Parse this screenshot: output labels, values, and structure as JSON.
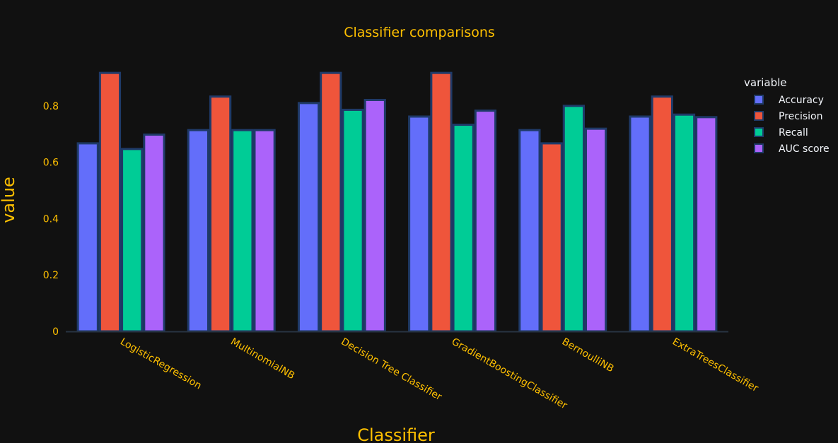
{
  "chart_data": {
    "type": "bar",
    "title": "Classifier comparisons",
    "xlabel": "Classifier",
    "ylabel": "value",
    "categories": [
      "LogisticRegression",
      "MultinomialNB",
      "Decision Tree Classifier",
      "GradientBoostingClassifier",
      "BernoulliNB",
      "ExtraTreesClassifier"
    ],
    "series": [
      {
        "name": "Accuracy",
        "color": "#636efa",
        "values": [
          0.667,
          0.714,
          0.81,
          0.762,
          0.714,
          0.762
        ]
      },
      {
        "name": "Precision",
        "color": "#ef553b",
        "values": [
          0.917,
          0.833,
          0.917,
          0.917,
          0.667,
          0.833
        ]
      },
      {
        "name": "Recall",
        "color": "#00cc96",
        "values": [
          0.647,
          0.714,
          0.786,
          0.733,
          0.8,
          0.769
        ]
      },
      {
        "name": "AUC score",
        "color": "#ab63fa",
        "values": [
          0.698,
          0.714,
          0.821,
          0.783,
          0.719,
          0.76
        ]
      }
    ],
    "ylim": [
      0,
      0.95
    ],
    "yticks": [
      0,
      0.2,
      0.4,
      0.6,
      0.8
    ],
    "ytick_labels": [
      "0",
      "0.2",
      "0.4",
      "0.6",
      "0.8"
    ],
    "legend_title": "variable",
    "legend_position": "top-right",
    "grid": false,
    "bar_outline_color": "#1f3a68",
    "background": "#111111",
    "text_color": "#ffc000"
  }
}
